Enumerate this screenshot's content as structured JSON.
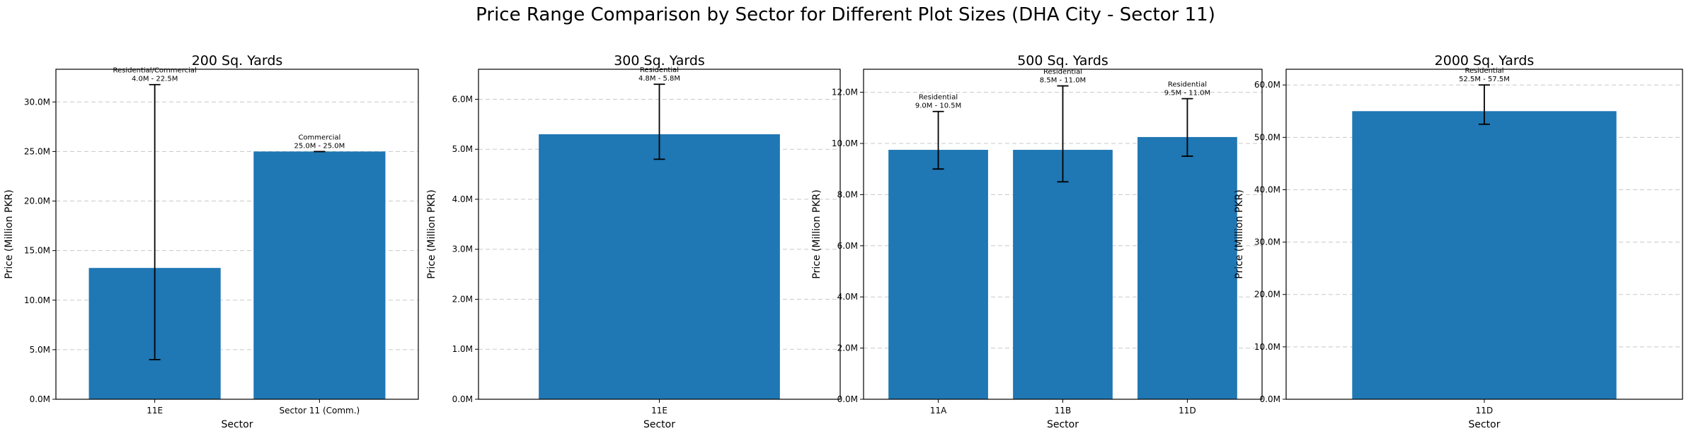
{
  "figure": {
    "title": "Price Range Comparison by Sector for Different Plot Sizes (DHA City - Sector 11)"
  },
  "colors": {
    "bar": "#1f77b4",
    "grid": "#c8c8c8",
    "axis": "#000000"
  },
  "chart_data": [
    {
      "type": "bar",
      "title": "200 Sq. Yards",
      "xlabel": "Sector",
      "ylabel": "Price (Million PKR)",
      "ylim": [
        0,
        33.3
      ],
      "yticks": [
        0,
        5,
        10,
        15,
        20,
        25,
        30
      ],
      "ytick_labels": [
        "0.0M",
        "5.0M",
        "10.0M",
        "15.0M",
        "20.0M",
        "25.0M",
        "30.0M"
      ],
      "grid": "horizontal dashed",
      "categories": [
        "11E",
        "Sector 11 (Comm.)"
      ],
      "values": [
        13.25,
        25.0
      ],
      "err_low": [
        4.0,
        25.0
      ],
      "err_high": [
        31.75,
        25.0
      ],
      "annotations": [
        [
          "Residential/Commercial",
          "4.0M - 22.5M"
        ],
        [
          "Commercial",
          "25.0M - 25.0M"
        ]
      ]
    },
    {
      "type": "bar",
      "title": "300 Sq. Yards",
      "xlabel": "Sector",
      "ylabel": "Price (Million PKR)",
      "ylim": [
        0,
        6.6
      ],
      "yticks": [
        0,
        1,
        2,
        3,
        4,
        5,
        6
      ],
      "ytick_labels": [
        "0.0M",
        "1.0M",
        "2.0M",
        "3.0M",
        "4.0M",
        "5.0M",
        "6.0M"
      ],
      "grid": "horizontal dashed",
      "categories": [
        "11E"
      ],
      "values": [
        5.3
      ],
      "err_low": [
        4.8
      ],
      "err_high": [
        6.3
      ],
      "annotations": [
        [
          "Residential",
          "4.8M - 5.8M"
        ]
      ]
    },
    {
      "type": "bar",
      "title": "500 Sq. Yards",
      "xlabel": "Sector",
      "ylabel": "Price (Million PKR)",
      "ylim": [
        0,
        12.9
      ],
      "yticks": [
        0,
        2,
        4,
        6,
        8,
        10,
        12
      ],
      "ytick_labels": [
        "0.0M",
        "2.0M",
        "4.0M",
        "6.0M",
        "8.0M",
        "10.0M",
        "12.0M"
      ],
      "grid": "horizontal dashed",
      "categories": [
        "11A",
        "11B",
        "11D"
      ],
      "values": [
        9.75,
        9.75,
        10.25
      ],
      "err_low": [
        9.0,
        8.5,
        9.5
      ],
      "err_high": [
        11.25,
        12.25,
        11.75
      ],
      "annotations": [
        [
          "Residential",
          "9.0M - 10.5M"
        ],
        [
          "Residential",
          "8.5M - 11.0M"
        ],
        [
          "Residential",
          "9.5M - 11.0M"
        ]
      ]
    },
    {
      "type": "bar",
      "title": "2000 Sq. Yards",
      "xlabel": "Sector",
      "ylabel": "Price (Million PKR)",
      "ylim": [
        0,
        63
      ],
      "yticks": [
        0,
        10,
        20,
        30,
        40,
        50,
        60
      ],
      "ytick_labels": [
        "0.0M",
        "10.0M",
        "20.0M",
        "30.0M",
        "40.0M",
        "50.0M",
        "60.0M"
      ],
      "grid": "horizontal dashed",
      "categories": [
        "11D"
      ],
      "values": [
        55.0
      ],
      "err_low": [
        52.5
      ],
      "err_high": [
        60.0
      ],
      "annotations": [
        [
          "Residential",
          "52.5M - 57.5M"
        ]
      ]
    }
  ]
}
